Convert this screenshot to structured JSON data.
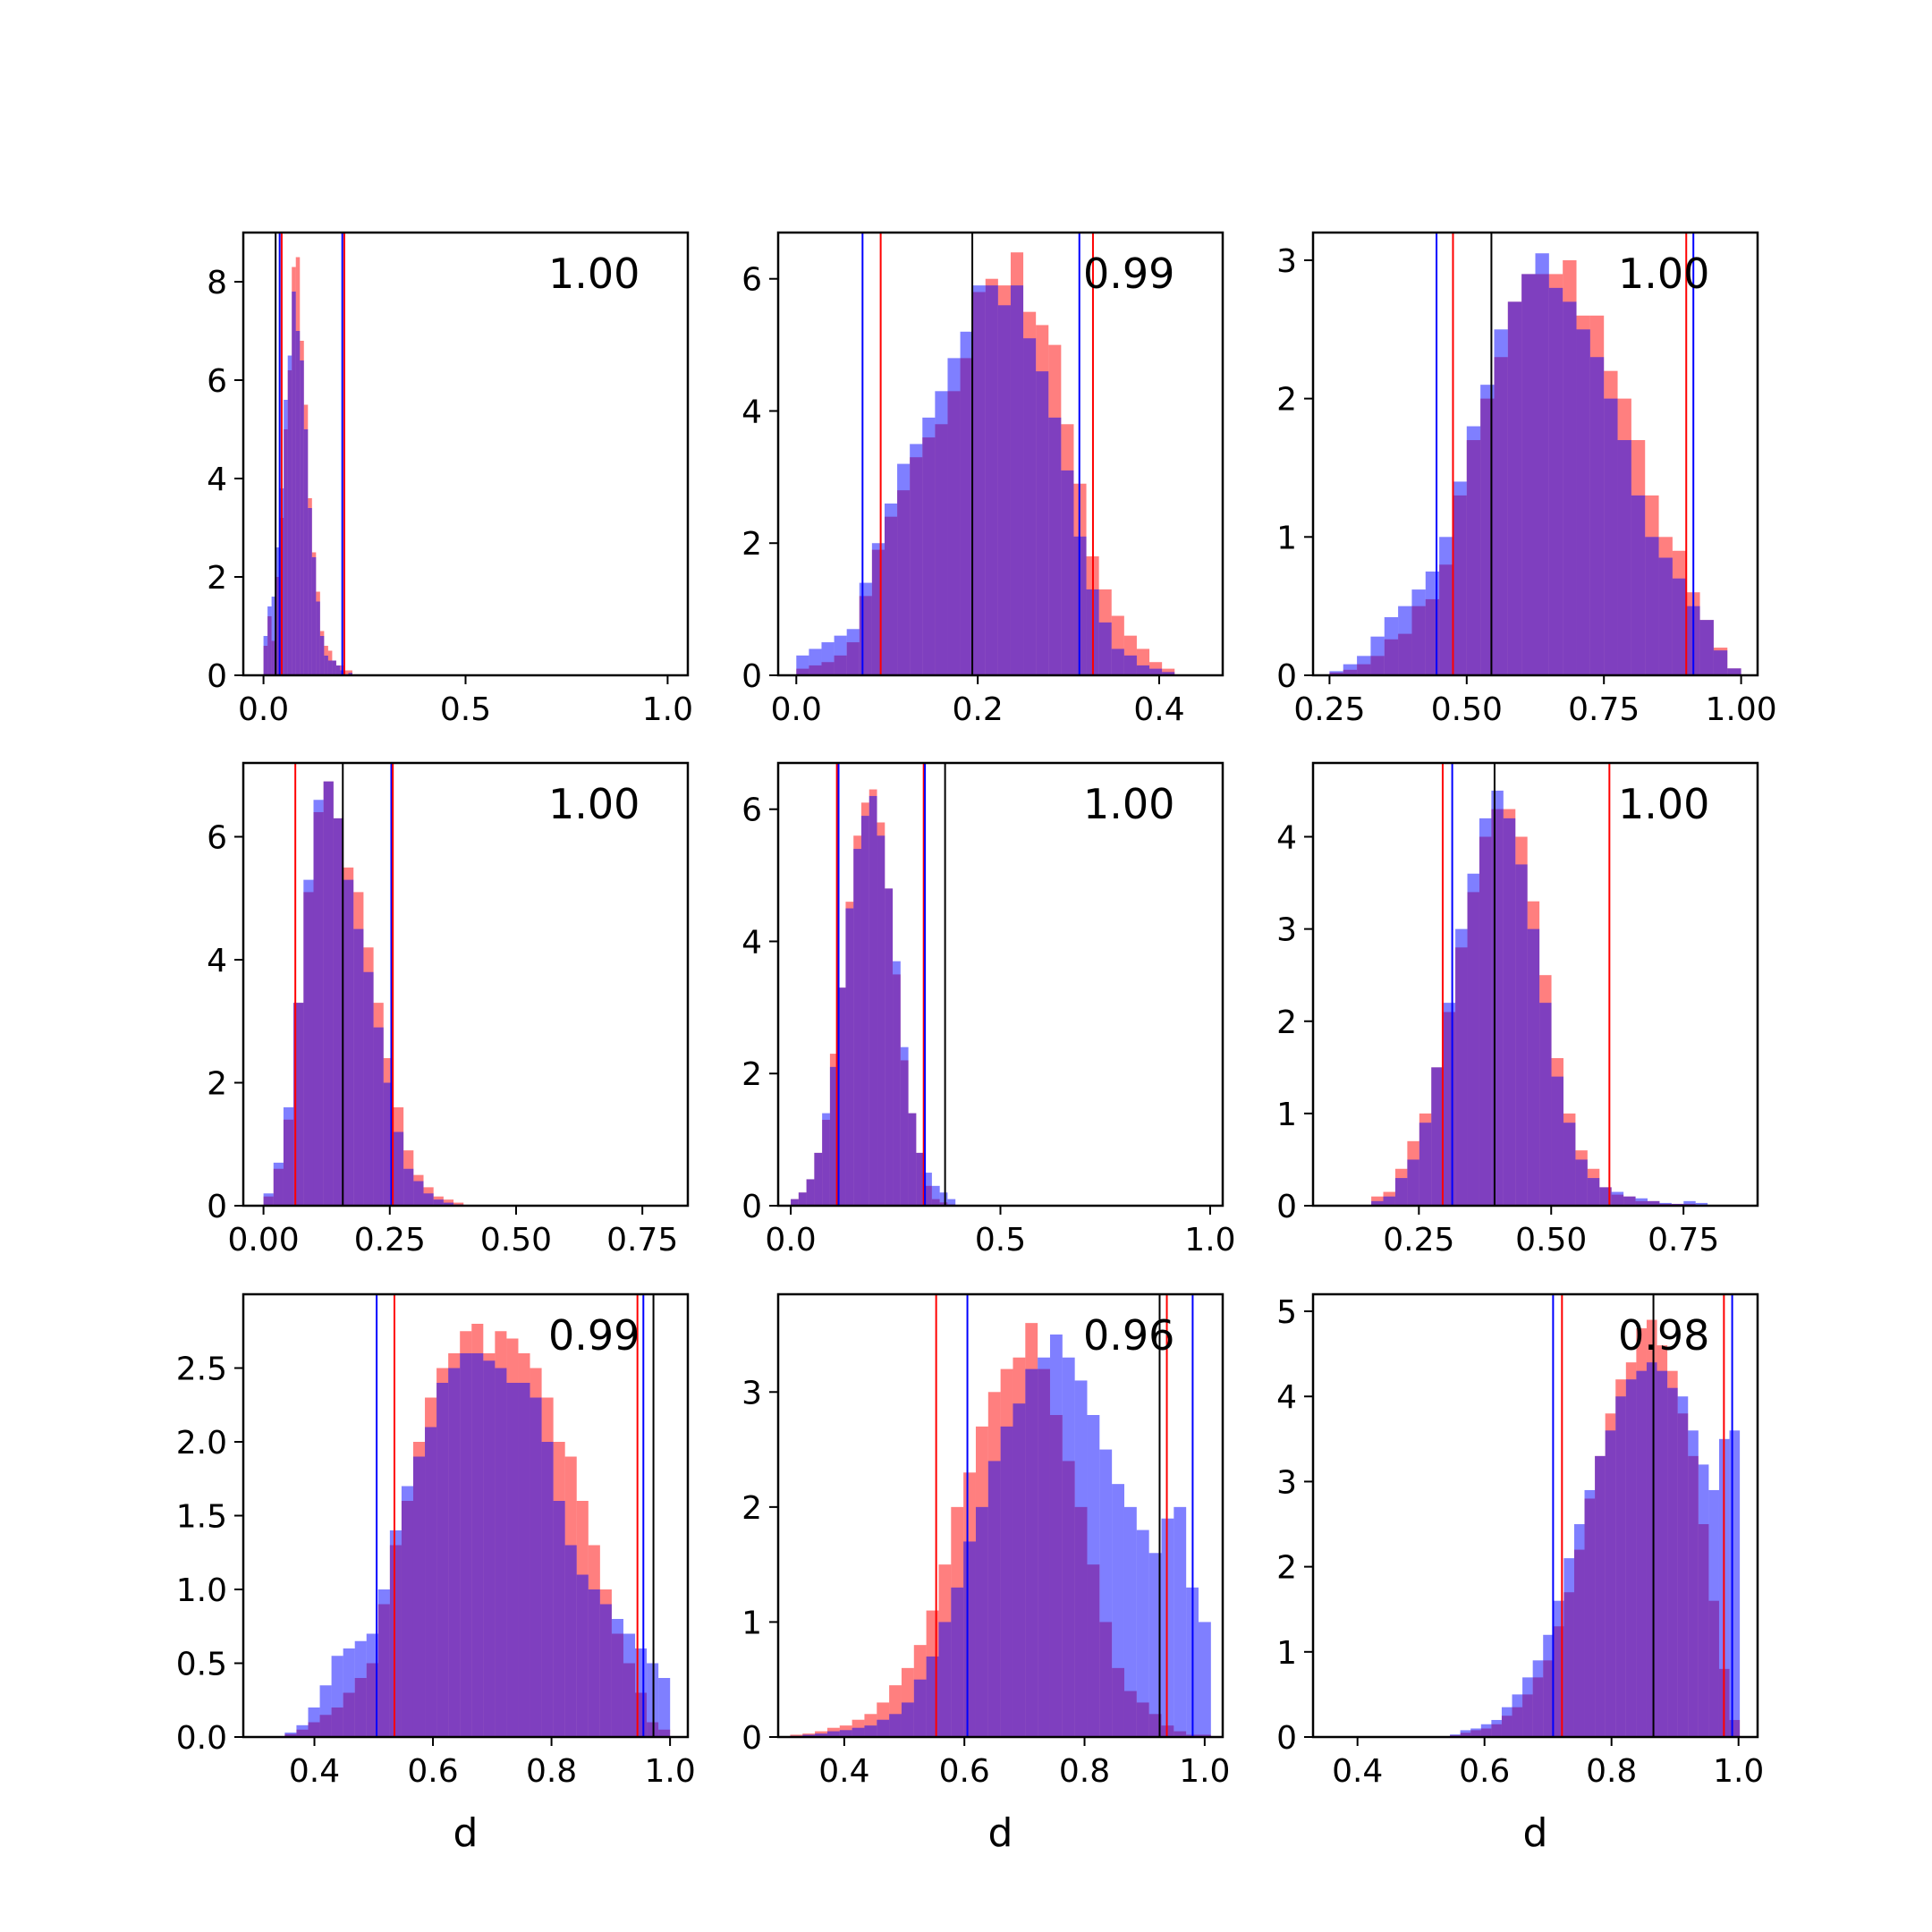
{
  "figure": {
    "colors": {
      "red": "#ff0000",
      "blue": "#0000ff",
      "black": "#000000",
      "overlap": "#7f3fbf"
    },
    "xlabel": "d"
  },
  "chart_data": [
    {
      "type": "histogram",
      "panel": "row1-col1",
      "annotation": "1.00",
      "xlim": [
        -0.05,
        1.05
      ],
      "ylim": [
        0,
        9
      ],
      "xticks": [
        "0.0",
        "0.5",
        "1.0"
      ],
      "yticks": [
        "0",
        "2",
        "4",
        "6",
        "8"
      ],
      "bins_start": 0.0,
      "bin_width": 0.01,
      "series": [
        {
          "color": "red",
          "counts": [
            0.6,
            1.2,
            0.7,
            2.0,
            3.2,
            5.0,
            6.2,
            8.3,
            8.5,
            6.8,
            5.5,
            3.6,
            2.5,
            1.7,
            0.9,
            0.6,
            0.5,
            0.3,
            0.2,
            0.2,
            0.1,
            0.1
          ]
        },
        {
          "color": "blue",
          "counts": [
            0.8,
            1.4,
            1.6,
            2.6,
            3.8,
            5.6,
            6.5,
            7.8,
            7.0,
            6.4,
            5.0,
            3.4,
            2.4,
            1.5,
            0.8,
            0.4,
            0.3,
            0.3,
            0.2,
            0.1,
            0.0,
            0.05
          ]
        }
      ],
      "vlines": [
        {
          "color": "black",
          "x": 0.03
        },
        {
          "color": "blue",
          "x": 0.04
        },
        {
          "color": "red",
          "x": 0.045
        },
        {
          "color": "blue",
          "x": 0.195
        },
        {
          "color": "red",
          "x": 0.2
        }
      ]
    },
    {
      "type": "histogram",
      "panel": "row1-col2",
      "annotation": "0.99",
      "xlim": [
        -0.02,
        0.47
      ],
      "ylim": [
        0,
        6.7
      ],
      "xticks": [
        "0.0",
        "0.2",
        "0.4"
      ],
      "yticks": [
        "0",
        "2",
        "4",
        "6"
      ],
      "bins_start": 0.0,
      "bin_width": 0.0139,
      "series": [
        {
          "color": "red",
          "counts": [
            0.1,
            0.15,
            0.2,
            0.3,
            0.5,
            1.2,
            1.9,
            2.4,
            2.8,
            3.3,
            3.6,
            3.8,
            4.3,
            4.8,
            5.8,
            6.0,
            5.9,
            6.4,
            5.5,
            5.3,
            5.0,
            3.8,
            2.9,
            1.8,
            1.3,
            0.9,
            0.6,
            0.4,
            0.2,
            0.1
          ]
        },
        {
          "color": "blue",
          "counts": [
            0.3,
            0.4,
            0.5,
            0.6,
            0.7,
            1.4,
            2.0,
            2.6,
            3.2,
            3.5,
            3.9,
            4.3,
            4.8,
            5.2,
            5.9,
            5.9,
            5.6,
            5.9,
            5.1,
            4.6,
            3.9,
            3.1,
            2.1,
            1.3,
            0.8,
            0.4,
            0.3,
            0.15,
            0.1,
            0.05
          ]
        }
      ],
      "vlines": [
        {
          "color": "blue",
          "x": 0.073
        },
        {
          "color": "red",
          "x": 0.093
        },
        {
          "color": "black",
          "x": 0.194
        },
        {
          "color": "blue",
          "x": 0.312
        },
        {
          "color": "red",
          "x": 0.327
        }
      ]
    },
    {
      "type": "histogram",
      "panel": "row1-col3",
      "annotation": "1.00",
      "xlim": [
        0.22,
        1.03
      ],
      "ylim": [
        0,
        3.2
      ],
      "xticks": [
        "0.25",
        "0.50",
        "0.75",
        "1.00"
      ],
      "yticks": [
        "0",
        "1",
        "2",
        "3"
      ],
      "bins_start": 0.25,
      "bin_width": 0.025,
      "series": [
        {
          "color": "red",
          "counts": [
            0.02,
            0.04,
            0.08,
            0.14,
            0.26,
            0.3,
            0.5,
            0.55,
            0.8,
            1.3,
            1.7,
            2.0,
            2.3,
            2.7,
            2.9,
            2.9,
            2.9,
            3.0,
            2.6,
            2.6,
            2.2,
            2.0,
            1.7,
            1.3,
            1.0,
            0.9,
            0.6,
            0.4,
            0.2,
            0.05
          ]
        },
        {
          "color": "blue",
          "counts": [
            0.03,
            0.08,
            0.14,
            0.28,
            0.42,
            0.5,
            0.62,
            0.75,
            1.0,
            1.4,
            1.8,
            2.1,
            2.5,
            2.7,
            2.9,
            3.05,
            2.8,
            2.7,
            2.5,
            2.3,
            2.0,
            1.7,
            1.3,
            1.0,
            0.85,
            0.7,
            0.5,
            0.4,
            0.18,
            0.05
          ]
        }
      ],
      "vlines": [
        {
          "color": "blue",
          "x": 0.445
        },
        {
          "color": "red",
          "x": 0.475
        },
        {
          "color": "black",
          "x": 0.545
        },
        {
          "color": "red",
          "x": 0.9
        },
        {
          "color": "blue",
          "x": 0.913
        }
      ]
    },
    {
      "type": "histogram",
      "panel": "row2-col1",
      "annotation": "1.00",
      "xlim": [
        -0.04,
        0.84
      ],
      "ylim": [
        0,
        7.2
      ],
      "xticks": [
        "0.00",
        "0.25",
        "0.50",
        "0.75"
      ],
      "yticks": [
        "0",
        "2",
        "4",
        "6"
      ],
      "bins_start": 0.0,
      "bin_width": 0.0198,
      "series": [
        {
          "color": "red",
          "counts": [
            0.15,
            0.6,
            1.4,
            3.3,
            5.1,
            6.4,
            6.9,
            6.3,
            5.5,
            5.1,
            4.2,
            3.3,
            2.4,
            1.6,
            0.9,
            0.5,
            0.3,
            0.15,
            0.1,
            0.05
          ]
        },
        {
          "color": "blue",
          "counts": [
            0.2,
            0.7,
            1.6,
            3.3,
            5.3,
            6.6,
            6.9,
            6.3,
            5.3,
            4.5,
            3.8,
            2.9,
            2.0,
            1.2,
            0.6,
            0.4,
            0.2,
            0.1,
            0.05,
            0.02
          ]
        }
      ],
      "vlines": [
        {
          "color": "red",
          "x": 0.063
        },
        {
          "color": "black",
          "x": 0.157
        },
        {
          "color": "blue",
          "x": 0.253
        },
        {
          "color": "red",
          "x": 0.256
        }
      ]
    },
    {
      "type": "histogram",
      "panel": "row2-col2",
      "annotation": "1.00",
      "xlim": [
        -0.03,
        1.03
      ],
      "ylim": [
        0,
        6.7
      ],
      "xticks": [
        "0.0",
        "0.5",
        "1.0"
      ],
      "yticks": [
        "0",
        "2",
        "4",
        "6"
      ],
      "bins_start": 0.0,
      "bin_width": 0.0187,
      "series": [
        {
          "color": "red",
          "counts": [
            0.1,
            0.2,
            0.4,
            0.8,
            1.3,
            2.3,
            3.3,
            4.6,
            5.6,
            6.1,
            6.3,
            5.8,
            4.8,
            3.5,
            2.2,
            1.4,
            0.8,
            0.3,
            0.1,
            0.05,
            0.02
          ]
        },
        {
          "color": "blue",
          "counts": [
            0.1,
            0.2,
            0.4,
            0.8,
            1.4,
            2.1,
            3.3,
            4.5,
            5.4,
            5.9,
            6.2,
            5.6,
            4.8,
            3.7,
            2.4,
            1.4,
            0.8,
            0.5,
            0.3,
            0.2,
            0.1
          ]
        }
      ],
      "vlines": [
        {
          "color": "red",
          "x": 0.11
        },
        {
          "color": "blue",
          "x": 0.114
        },
        {
          "color": "red",
          "x": 0.317
        },
        {
          "color": "blue",
          "x": 0.32
        },
        {
          "color": "black",
          "x": 0.368
        }
      ]
    },
    {
      "type": "histogram",
      "panel": "row2-col3",
      "annotation": "1.00",
      "xlim": [
        0.05,
        0.89
      ],
      "ylim": [
        0,
        4.8
      ],
      "xticks": [
        "0.25",
        "0.50",
        "0.75"
      ],
      "yticks": [
        "0",
        "1",
        "2",
        "3",
        "4"
      ],
      "bins_start": 0.16,
      "bin_width": 0.0227,
      "series": [
        {
          "color": "red",
          "counts": [
            0.1,
            0.15,
            0.4,
            0.7,
            1.0,
            1.5,
            2.1,
            2.8,
            3.4,
            4.0,
            4.3,
            4.3,
            4.0,
            3.3,
            2.5,
            1.6,
            1.0,
            0.6,
            0.4,
            0.2,
            0.12,
            0.1,
            0.05,
            0.05,
            0.02,
            0.02,
            0.02,
            0.01
          ]
        },
        {
          "color": "blue",
          "counts": [
            0.05,
            0.1,
            0.3,
            0.5,
            0.9,
            1.5,
            2.2,
            3.0,
            3.6,
            4.2,
            4.5,
            4.2,
            3.7,
            3.0,
            2.2,
            1.4,
            0.9,
            0.5,
            0.3,
            0.2,
            0.15,
            0.1,
            0.08,
            0.05,
            0.03,
            0.02,
            0.05,
            0.03
          ]
        }
      ],
      "vlines": [
        {
          "color": "red",
          "x": 0.295
        },
        {
          "color": "blue",
          "x": 0.313
        },
        {
          "color": "black",
          "x": 0.393
        },
        {
          "color": "red",
          "x": 0.61
        }
      ]
    },
    {
      "type": "histogram",
      "panel": "row3-col1",
      "annotation": "0.99",
      "xlim": [
        0.28,
        1.03
      ],
      "ylim": [
        0,
        3.0
      ],
      "xticks": [
        "0.4",
        "0.6",
        "0.8",
        "1.0"
      ],
      "yticks": [
        "0.0",
        "0.5",
        "1.0",
        "1.5",
        "2.0",
        "2.5"
      ],
      "bins_start": 0.35,
      "bin_width": 0.0197,
      "series": [
        {
          "color": "red",
          "counts": [
            0.02,
            0.05,
            0.1,
            0.15,
            0.2,
            0.3,
            0.4,
            0.5,
            0.9,
            1.3,
            1.6,
            2.0,
            2.3,
            2.5,
            2.6,
            2.75,
            2.8,
            2.6,
            2.75,
            2.7,
            2.6,
            2.5,
            2.3,
            2.0,
            1.9,
            1.6,
            1.3,
            1.0,
            0.7,
            0.5,
            0.3,
            0.1,
            0.05
          ]
        },
        {
          "color": "blue",
          "counts": [
            0.03,
            0.08,
            0.2,
            0.35,
            0.55,
            0.6,
            0.65,
            0.7,
            1.0,
            1.4,
            1.7,
            1.9,
            2.1,
            2.4,
            2.5,
            2.6,
            2.6,
            2.55,
            2.5,
            2.4,
            2.4,
            2.3,
            2.0,
            1.6,
            1.3,
            1.1,
            1.0,
            0.9,
            0.8,
            0.7,
            0.6,
            0.5,
            0.4
          ]
        }
      ],
      "vlines": [
        {
          "color": "blue",
          "x": 0.505
        },
        {
          "color": "red",
          "x": 0.535
        },
        {
          "color": "red",
          "x": 0.945
        },
        {
          "color": "blue",
          "x": 0.955
        },
        {
          "color": "black",
          "x": 0.972
        }
      ]
    },
    {
      "type": "histogram",
      "panel": "row3-col2",
      "annotation": "0.96",
      "xlim": [
        0.29,
        1.03
      ],
      "ylim": [
        0,
        3.85
      ],
      "xticks": [
        "0.4",
        "0.6",
        "0.8",
        "1.0"
      ],
      "yticks": [
        "0",
        "1",
        "2",
        "3"
      ],
      "bins_start": 0.31,
      "bin_width": 0.0206,
      "series": [
        {
          "color": "red",
          "counts": [
            0.02,
            0.03,
            0.05,
            0.08,
            0.1,
            0.15,
            0.2,
            0.3,
            0.45,
            0.6,
            0.8,
            1.1,
            1.5,
            2.0,
            2.3,
            2.7,
            3.0,
            3.2,
            3.3,
            3.6,
            3.2,
            2.8,
            2.4,
            2.0,
            1.5,
            1.0,
            0.6,
            0.4,
            0.3,
            0.2,
            0.1,
            0.05,
            0.02,
            0.02
          ]
        },
        {
          "color": "blue",
          "counts": [
            0.01,
            0.02,
            0.03,
            0.05,
            0.06,
            0.08,
            0.1,
            0.15,
            0.2,
            0.3,
            0.5,
            0.7,
            1.0,
            1.3,
            1.7,
            2.0,
            2.4,
            2.7,
            2.9,
            3.2,
            3.3,
            3.5,
            3.3,
            3.1,
            2.8,
            2.5,
            2.2,
            2.0,
            1.8,
            1.6,
            1.9,
            2.0,
            1.3,
            1.0
          ]
        }
      ],
      "vlines": [
        {
          "color": "red",
          "x": 0.553
        },
        {
          "color": "blue",
          "x": 0.605
        },
        {
          "color": "black",
          "x": 0.925
        },
        {
          "color": "red",
          "x": 0.937
        },
        {
          "color": "blue",
          "x": 0.98
        }
      ]
    },
    {
      "type": "histogram",
      "panel": "row3-col3",
      "annotation": "0.98",
      "xlim": [
        0.33,
        1.03
      ],
      "ylim": [
        0,
        5.2
      ],
      "xticks": [
        "0.4",
        "0.6",
        "0.8",
        "1.0"
      ],
      "yticks": [
        "0",
        "1",
        "2",
        "3",
        "4",
        "5"
      ],
      "bins_start": 0.35,
      "bin_width": 0.0163,
      "series": [
        {
          "color": "red",
          "counts": [
            0,
            0,
            0,
            0,
            0,
            0,
            0,
            0,
            0,
            0,
            0,
            0,
            0.02,
            0.05,
            0.08,
            0.1,
            0.15,
            0.25,
            0.35,
            0.5,
            0.7,
            0.9,
            1.3,
            1.7,
            2.2,
            2.8,
            3.3,
            3.8,
            4.2,
            4.4,
            4.8,
            4.9,
            4.6,
            4.3,
            3.8,
            3.3,
            2.5,
            1.6,
            0.8,
            0.2
          ]
        },
        {
          "color": "blue",
          "counts": [
            0,
            0,
            0,
            0,
            0,
            0,
            0,
            0,
            0,
            0,
            0,
            0.01,
            0.03,
            0.08,
            0.1,
            0.15,
            0.2,
            0.35,
            0.5,
            0.7,
            0.9,
            1.2,
            1.6,
            2.1,
            2.5,
            2.9,
            3.3,
            3.6,
            4.0,
            4.2,
            4.3,
            4.4,
            4.3,
            4.1,
            4.0,
            3.6,
            3.2,
            2.9,
            3.5,
            3.6
          ]
        }
      ],
      "vlines": [
        {
          "color": "blue",
          "x": 0.708
        },
        {
          "color": "red",
          "x": 0.722
        },
        {
          "color": "black",
          "x": 0.866
        },
        {
          "color": "red",
          "x": 0.977
        },
        {
          "color": "blue",
          "x": 0.99
        }
      ]
    }
  ]
}
